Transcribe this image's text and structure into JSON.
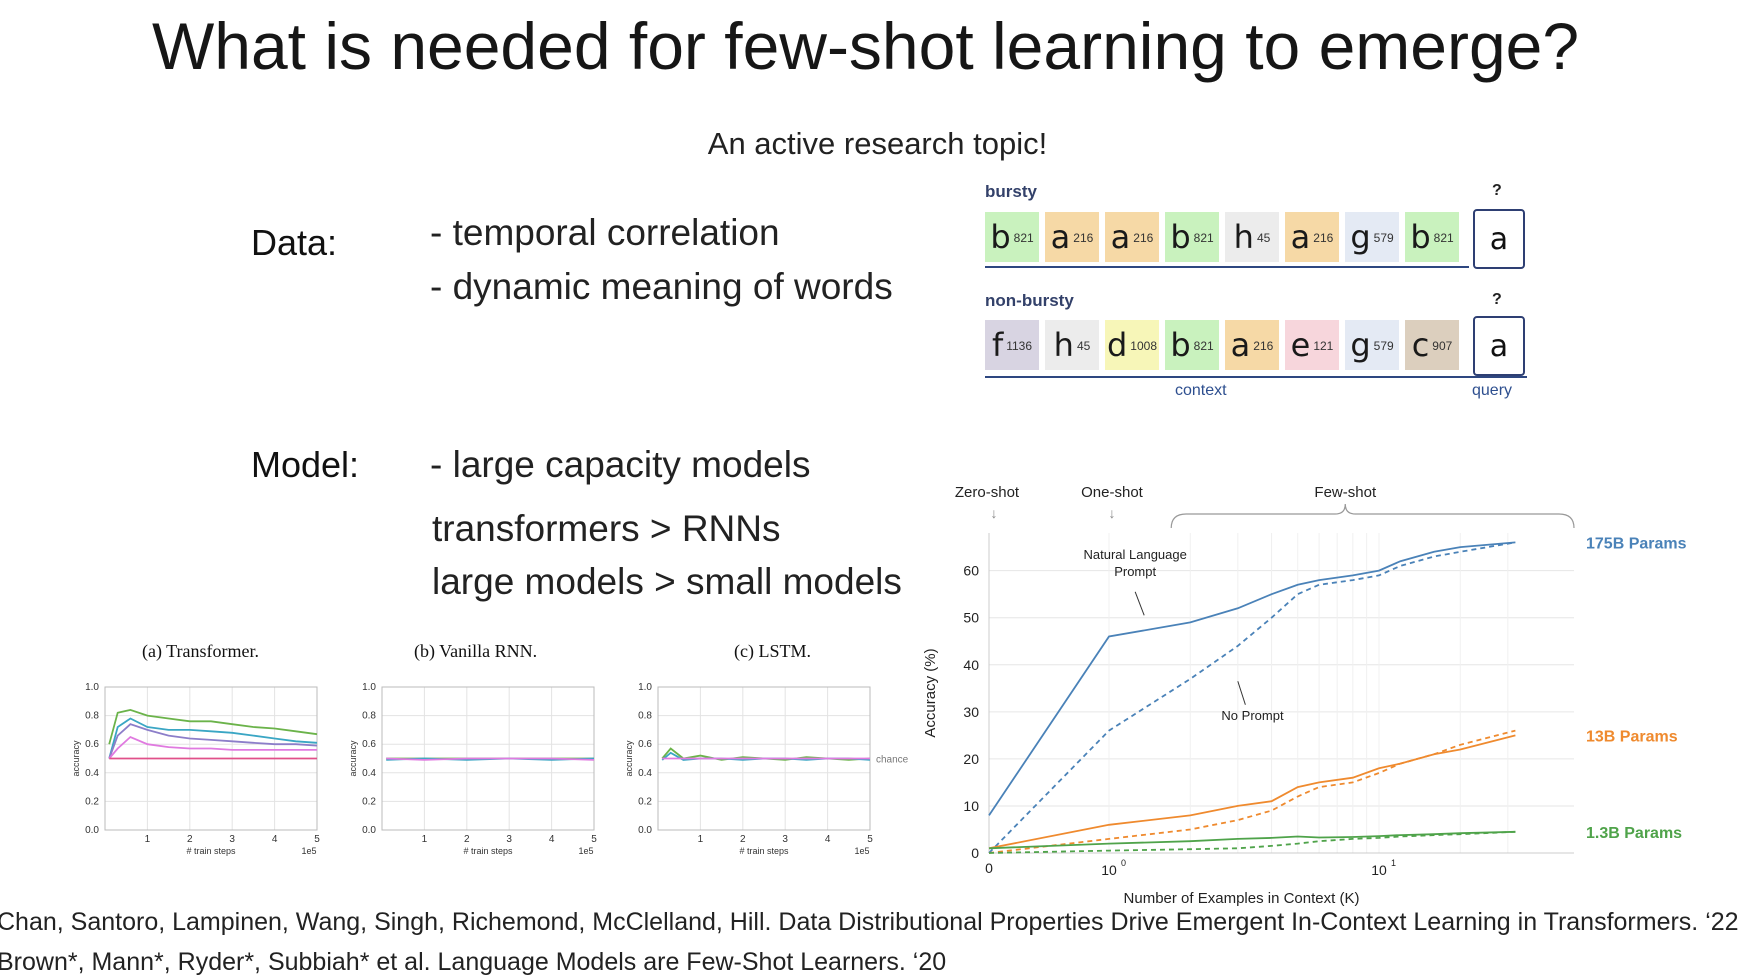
{
  "slide": {
    "title": "What is needed for few-shot learning to emerge?",
    "subtitle": "An active research topic!",
    "data_label": "Data:",
    "data_points": [
      "- temporal correlation",
      "- dynamic meaning of words"
    ],
    "model_label": "Model:",
    "model_points": [
      "- large capacity models",
      "transformers > RNNs",
      "large models > small models"
    ],
    "citations": [
      "Chan, Santoro, Lampinen, Wang, Singh, Richemond, McClelland, Hill. Data Distributional Properties Drive Emergent In-Context Learning in Transformers. ‘22",
      "Brown*, Mann*, Ryder*, Subbiah* et al. Language Models are Few-Shot Learners. ‘20"
    ]
  },
  "sequences": {
    "bursty": {
      "label": "bursty",
      "question": "?",
      "tokens": [
        {
          "glyph": "b",
          "num": "821",
          "color": "#c9f2be"
        },
        {
          "glyph": "a",
          "num": "216",
          "color": "#f6d9a6"
        },
        {
          "glyph": "a",
          "num": "216",
          "color": "#f6d9a6"
        },
        {
          "glyph": "b",
          "num": "821",
          "color": "#c9f2be"
        },
        {
          "glyph": "h",
          "num": "45",
          "color": "#ececec"
        },
        {
          "glyph": "a",
          "num": "216",
          "color": "#f6d9a6"
        },
        {
          "glyph": "g",
          "num": "579",
          "color": "#e4eaf4"
        },
        {
          "glyph": "b",
          "num": "821",
          "color": "#c9f2be"
        }
      ],
      "query": "a"
    },
    "nonbursty": {
      "label": "non-bursty",
      "question": "?",
      "tokens": [
        {
          "glyph": "f",
          "num": "1136",
          "color": "#d8d4e2"
        },
        {
          "glyph": "h",
          "num": "45",
          "color": "#ececec"
        },
        {
          "glyph": "d",
          "num": "1008",
          "color": "#f7f6b8"
        },
        {
          "glyph": "b",
          "num": "821",
          "color": "#c9f2be"
        },
        {
          "glyph": "a",
          "num": "216",
          "color": "#f6d9a6"
        },
        {
          "glyph": "e",
          "num": "121",
          "color": "#f7d6dc"
        },
        {
          "glyph": "g",
          "num": "579",
          "color": "#e4eaf4"
        },
        {
          "glyph": "c",
          "num": "907",
          "color": "#dccfbe"
        }
      ],
      "query": "a"
    },
    "context_label": "context",
    "query_label": "query"
  },
  "chart_data": [
    {
      "type": "line",
      "title": "(a) Transformer.",
      "xlabel": "# train steps",
      "ylabel": "accuracy",
      "x_scale_note": "1e5",
      "xlim": [
        0,
        5
      ],
      "ylim": [
        0,
        1
      ],
      "xticks": [
        "1",
        "2",
        "3",
        "4",
        "5"
      ],
      "yticks": [
        "0.0",
        "0.2",
        "0.4",
        "0.6",
        "0.8",
        "1.0"
      ],
      "series": [
        {
          "color": "#6bb34a",
          "x": [
            0.1,
            0.3,
            0.6,
            1,
            1.5,
            2,
            2.5,
            3,
            3.5,
            4,
            4.5,
            5
          ],
          "values": [
            0.6,
            0.82,
            0.84,
            0.8,
            0.78,
            0.76,
            0.76,
            0.74,
            0.72,
            0.71,
            0.69,
            0.67
          ]
        },
        {
          "color": "#3aa6c4",
          "x": [
            0.1,
            0.3,
            0.6,
            1,
            1.5,
            2,
            2.5,
            3,
            3.5,
            4,
            4.5,
            5
          ],
          "values": [
            0.5,
            0.72,
            0.78,
            0.72,
            0.7,
            0.7,
            0.69,
            0.68,
            0.66,
            0.64,
            0.62,
            0.61
          ]
        },
        {
          "color": "#8c7ec9",
          "x": [
            0.1,
            0.3,
            0.6,
            1,
            1.5,
            2,
            2.5,
            3,
            3.5,
            4,
            4.5,
            5
          ],
          "values": [
            0.5,
            0.66,
            0.74,
            0.7,
            0.66,
            0.64,
            0.63,
            0.62,
            0.61,
            0.6,
            0.6,
            0.59
          ]
        },
        {
          "color": "#e07ae0",
          "x": [
            0.1,
            0.3,
            0.6,
            1,
            1.5,
            2,
            2.5,
            3,
            3.5,
            4,
            4.5,
            5
          ],
          "values": [
            0.5,
            0.57,
            0.65,
            0.6,
            0.58,
            0.57,
            0.57,
            0.56,
            0.56,
            0.56,
            0.56,
            0.56
          ]
        },
        {
          "color": "#e0508a",
          "x": [
            0.1,
            1,
            2,
            3,
            4,
            5
          ],
          "values": [
            0.5,
            0.5,
            0.5,
            0.5,
            0.5,
            0.5
          ]
        }
      ]
    },
    {
      "type": "line",
      "title": "(b) Vanilla RNN.",
      "xlabel": "# train steps",
      "ylabel": "accuracy",
      "x_scale_note": "1e5",
      "xlim": [
        0,
        5
      ],
      "ylim": [
        0,
        1
      ],
      "xticks": [
        "1",
        "2",
        "3",
        "4",
        "5"
      ],
      "yticks": [
        "0.0",
        "0.2",
        "0.4",
        "0.6",
        "0.8",
        "1.0"
      ],
      "series": [
        {
          "color": "#6bb34a",
          "x": [
            0.1,
            1,
            2,
            3,
            4,
            5
          ],
          "values": [
            0.5,
            0.5,
            0.5,
            0.5,
            0.5,
            0.5
          ]
        },
        {
          "color": "#3aa6c4",
          "x": [
            0.1,
            1,
            2,
            3,
            4,
            5
          ],
          "values": [
            0.49,
            0.5,
            0.49,
            0.5,
            0.49,
            0.5
          ]
        },
        {
          "color": "#e07ae0",
          "x": [
            0.1,
            1,
            2,
            3,
            4,
            5
          ],
          "values": [
            0.5,
            0.49,
            0.5,
            0.5,
            0.5,
            0.49
          ]
        }
      ]
    },
    {
      "type": "line",
      "title": "(c) LSTM.",
      "xlabel": "# train steps",
      "ylabel": "accuracy",
      "x_scale_note": "1e5",
      "annotation": "chance",
      "xlim": [
        0,
        5
      ],
      "ylim": [
        0,
        1
      ],
      "xticks": [
        "1",
        "2",
        "3",
        "4",
        "5"
      ],
      "yticks": [
        "0.0",
        "0.2",
        "0.4",
        "0.6",
        "0.8",
        "1.0"
      ],
      "series": [
        {
          "color": "#6bb34a",
          "x": [
            0.1,
            0.3,
            0.6,
            1,
            1.5,
            2,
            2.5,
            3,
            3.5,
            4,
            4.5,
            5
          ],
          "values": [
            0.5,
            0.57,
            0.5,
            0.52,
            0.49,
            0.51,
            0.5,
            0.49,
            0.51,
            0.5,
            0.49,
            0.5
          ]
        },
        {
          "color": "#3aa6c4",
          "x": [
            0.1,
            0.3,
            0.6,
            1,
            1.5,
            2,
            2.5,
            3,
            3.5,
            4,
            4.5,
            5
          ],
          "values": [
            0.49,
            0.54,
            0.49,
            0.5,
            0.5,
            0.49,
            0.5,
            0.5,
            0.49,
            0.5,
            0.5,
            0.49
          ]
        },
        {
          "color": "#e07ae0",
          "x": [
            0.1,
            1,
            2,
            3,
            4,
            5
          ],
          "values": [
            0.5,
            0.5,
            0.5,
            0.5,
            0.5,
            0.5
          ]
        }
      ]
    },
    {
      "type": "line",
      "xlabel": "Number of Examples in Context  (K)",
      "ylabel": "Accuracy (%)",
      "ylim": [
        0,
        68
      ],
      "yticks": [
        "0",
        "10",
        "20",
        "30",
        "40",
        "50",
        "60"
      ],
      "xticks": [
        "0",
        "10^0",
        "10^1"
      ],
      "annotations": [
        "Zero-shot",
        "One-shot",
        "Few-shot",
        "Natural Language Prompt",
        "No Prompt"
      ],
      "series": [
        {
          "name": "175B Params",
          "color": "#4a82b8",
          "style": "solid",
          "x": [
            0,
            1,
            2,
            3,
            4,
            5,
            6,
            8,
            10,
            12,
            16,
            20,
            32
          ],
          "values": [
            8,
            46,
            49,
            52,
            55,
            57,
            58,
            59,
            60,
            62,
            64,
            65,
            66
          ]
        },
        {
          "name": "175B Params",
          "color": "#4a82b8",
          "style": "dashed",
          "x": [
            0,
            1,
            2,
            3,
            4,
            5,
            6,
            8,
            10,
            12,
            16,
            20,
            32
          ],
          "values": [
            0,
            26,
            37,
            44,
            50,
            55,
            57,
            58,
            59,
            61,
            63,
            64,
            66
          ]
        },
        {
          "name": "13B Params",
          "color": "#ef8a2e",
          "style": "solid",
          "x": [
            0,
            1,
            2,
            3,
            4,
            5,
            6,
            8,
            10,
            12,
            16,
            20,
            32
          ],
          "values": [
            1,
            6,
            8,
            10,
            11,
            14,
            15,
            16,
            18,
            19,
            21,
            22,
            25
          ]
        },
        {
          "name": "13B Params",
          "color": "#ef8a2e",
          "style": "dashed",
          "x": [
            0,
            1,
            2,
            3,
            4,
            5,
            6,
            8,
            10,
            12,
            16,
            20,
            32
          ],
          "values": [
            0,
            3,
            5,
            7,
            9,
            12,
            14,
            15,
            17,
            19,
            21,
            23,
            26
          ]
        },
        {
          "name": "1.3B Params",
          "color": "#4fa34a",
          "style": "solid",
          "x": [
            0,
            1,
            2,
            3,
            4,
            5,
            6,
            8,
            10,
            12,
            16,
            20,
            32
          ],
          "values": [
            1,
            2,
            2.5,
            3,
            3.2,
            3.5,
            3.3,
            3.4,
            3.6,
            3.8,
            4,
            4.2,
            4.5
          ]
        },
        {
          "name": "1.3B Params",
          "color": "#4fa34a",
          "style": "dashed",
          "x": [
            0,
            1,
            2,
            3,
            4,
            5,
            6,
            8,
            10,
            12,
            16,
            20,
            32
          ],
          "values": [
            0,
            0.5,
            0.8,
            1,
            1.5,
            2,
            2.5,
            3,
            3.2,
            3.5,
            3.8,
            4,
            4.5
          ]
        }
      ]
    }
  ]
}
